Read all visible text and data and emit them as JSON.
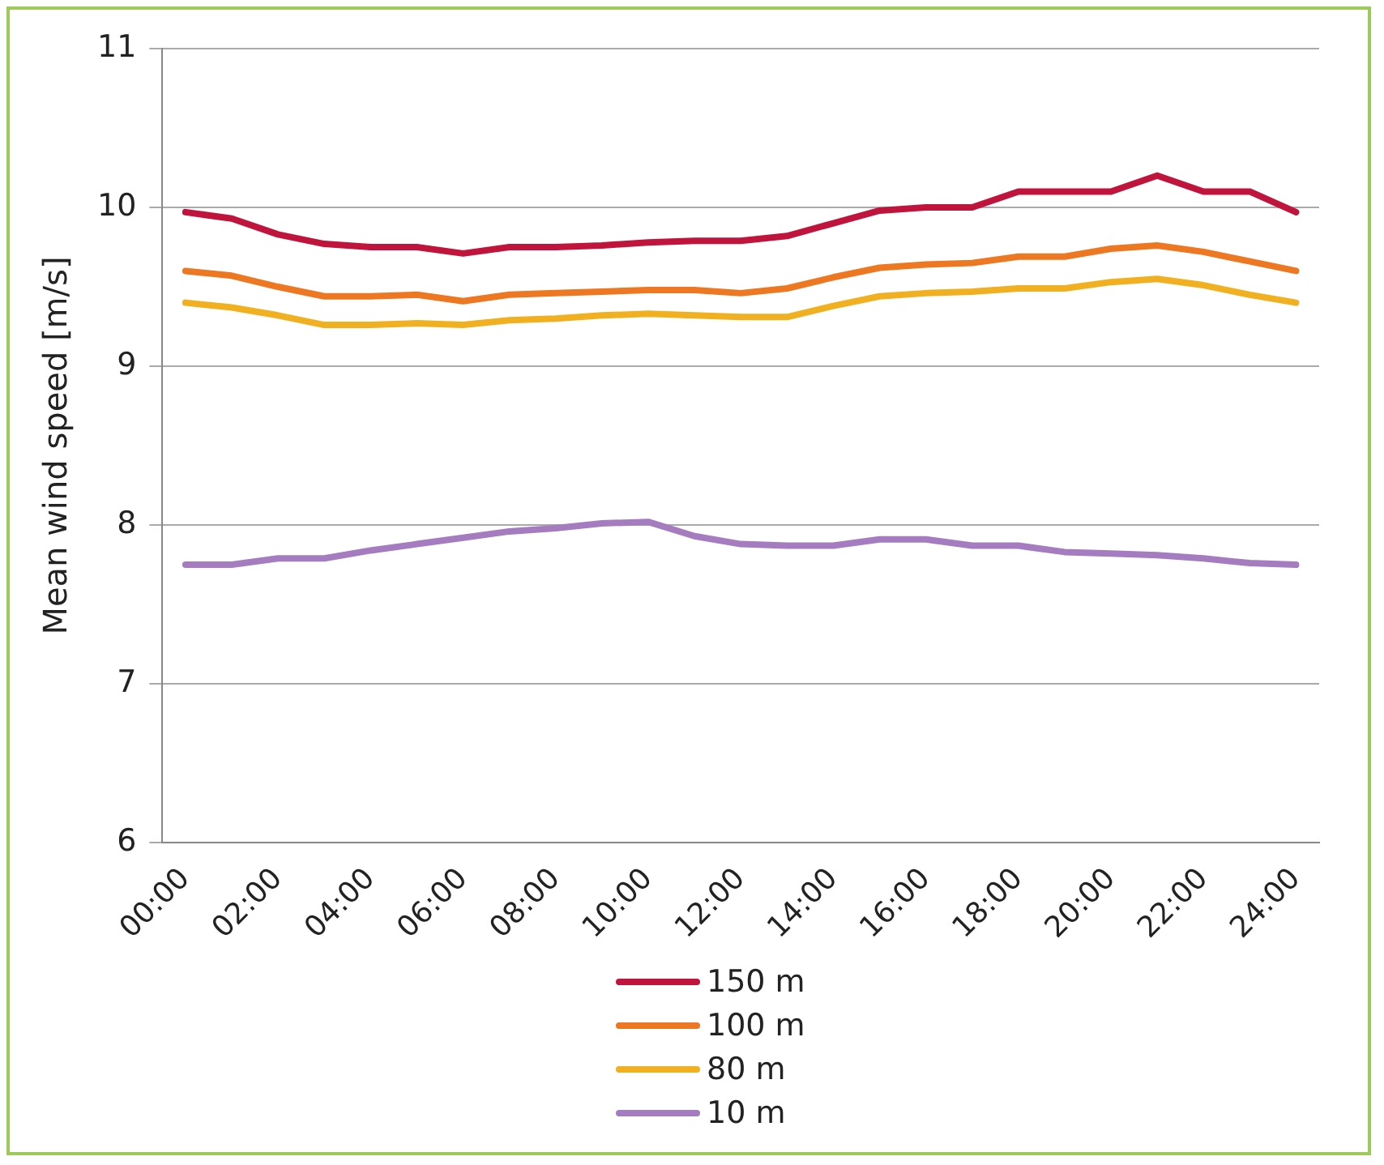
{
  "chart_data": {
    "type": "line",
    "ylabel": "Mean wind speed [m/s]",
    "categories": [
      "00:00",
      null,
      "02:00",
      null,
      "04:00",
      null,
      "06:00",
      null,
      "08:00",
      null,
      "10:00",
      null,
      "12:00",
      null,
      "14:00",
      null,
      "16:00",
      null,
      "18:00",
      null,
      "20:00",
      null,
      "22:00",
      null,
      "24:00"
    ],
    "series": [
      {
        "name": "150 m",
        "color": "#c0143c",
        "values": [
          9.97,
          9.93,
          9.83,
          9.77,
          9.75,
          9.75,
          9.71,
          9.75,
          9.75,
          9.76,
          9.78,
          9.79,
          9.79,
          9.82,
          9.9,
          9.98,
          10.0,
          10.0,
          10.1,
          10.1,
          10.1,
          10.2,
          10.1,
          10.1,
          9.97
        ]
      },
      {
        "name": "100 m",
        "color": "#ee7722",
        "values": [
          9.6,
          9.57,
          9.5,
          9.44,
          9.44,
          9.45,
          9.41,
          9.45,
          9.46,
          9.47,
          9.48,
          9.48,
          9.46,
          9.49,
          9.56,
          9.62,
          9.64,
          9.65,
          9.69,
          9.69,
          9.74,
          9.76,
          9.72,
          9.66,
          9.6
        ]
      },
      {
        "name": "80 m",
        "color": "#f0b020",
        "values": [
          9.4,
          9.37,
          9.32,
          9.26,
          9.26,
          9.27,
          9.26,
          9.29,
          9.3,
          9.32,
          9.33,
          9.32,
          9.31,
          9.31,
          9.38,
          9.44,
          9.46,
          9.47,
          9.49,
          9.49,
          9.53,
          9.55,
          9.51,
          9.45,
          9.4
        ]
      },
      {
        "name": "10 m",
        "color": "#a57cc0",
        "values": [
          7.75,
          7.75,
          7.79,
          7.79,
          7.84,
          7.88,
          7.92,
          7.96,
          7.98,
          8.01,
          8.02,
          7.93,
          7.88,
          7.87,
          7.87,
          7.91,
          7.91,
          7.87,
          7.87,
          7.83,
          7.82,
          7.81,
          7.79,
          7.76,
          7.75
        ]
      }
    ],
    "ylim": [
      6,
      11
    ],
    "yticks": [
      6,
      7,
      8,
      9,
      10,
      11
    ],
    "grid": "y",
    "legend": "bottom",
    "marker": "none",
    "line_style": "solid"
  }
}
